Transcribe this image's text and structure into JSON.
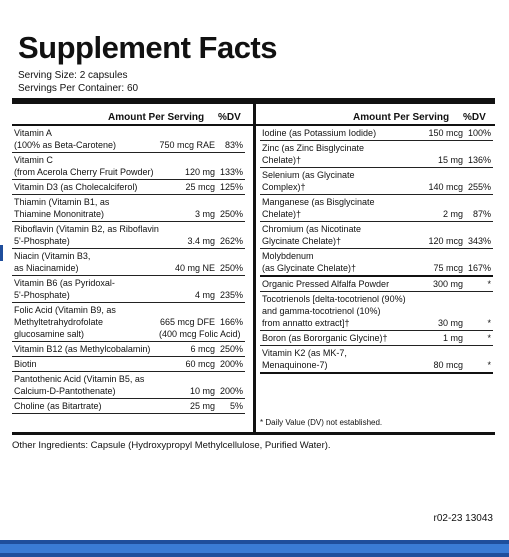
{
  "title": "Supplement Facts",
  "serving_size": "Serving Size: 2 capsules",
  "servings_per_container": "Servings Per Container: 60",
  "header": {
    "amount": "Amount Per Serving",
    "dv": "%DV"
  },
  "left_rows": [
    {
      "lines": [
        [
          "Vitamin A",
          "",
          ""
        ],
        [
          "(100% as Beta-Carotene)",
          "750 mcg RAE",
          "83%"
        ]
      ]
    },
    {
      "lines": [
        [
          "Vitamin C",
          "",
          ""
        ],
        [
          "(from Acerola Cherry Fruit Powder)",
          "120 mg",
          "133%"
        ]
      ]
    },
    {
      "lines": [
        [
          "Vitamin D3 (as Cholecalciferol)",
          "25 mcg",
          "125%"
        ]
      ]
    },
    {
      "lines": [
        [
          "Thiamin (Vitamin B1, as",
          "",
          ""
        ],
        [
          "Thiamine Mononitrate)",
          "3 mg",
          "250%"
        ]
      ]
    },
    {
      "lines": [
        [
          "Riboflavin (Vitamin B2, as Riboflavin-",
          "",
          ""
        ],
        [
          "5'-Phosphate)",
          "3.4 mg",
          "262%"
        ]
      ]
    },
    {
      "lines": [
        [
          "Niacin (Vitamin B3,",
          "",
          ""
        ],
        [
          "as Niacinamide)",
          "40 mg NE",
          "250%"
        ]
      ]
    },
    {
      "lines": [
        [
          "Vitamin B6 (as Pyridoxal-",
          "",
          ""
        ],
        [
          "5'-Phosphate)",
          "4 mg",
          "235%"
        ]
      ]
    },
    {
      "lines": [
        [
          "Folic Acid (Vitamin B9, as",
          "",
          ""
        ],
        [
          "Methyltetrahydrofolate",
          "665 mcg DFE",
          "166%"
        ],
        [
          "glucosamine salt)",
          "(400 mcg Folic Acid)",
          ""
        ]
      ]
    },
    {
      "lines": [
        [
          "Vitamin B12 (as Methylcobalamin)",
          "6 mcg",
          "250%"
        ]
      ]
    },
    {
      "lines": [
        [
          "Biotin",
          "60 mcg",
          "200%"
        ]
      ]
    },
    {
      "lines": [
        [
          "Pantothenic Acid (Vitamin B5, as",
          "",
          ""
        ],
        [
          "Calcium-D-Pantothenate)",
          "10 mg",
          "200%"
        ]
      ]
    },
    {
      "lines": [
        [
          "Choline (as Bitartrate)",
          "25 mg",
          "5%"
        ]
      ]
    }
  ],
  "right_rows": [
    {
      "lines": [
        [
          "Iodine (as Potassium Iodide)",
          "150 mcg",
          "100%"
        ]
      ]
    },
    {
      "lines": [
        [
          "Zinc (as Zinc Bisglycinate",
          "",
          ""
        ],
        [
          "Chelate)†",
          "15 mg",
          "136%"
        ]
      ]
    },
    {
      "lines": [
        [
          "Selenium (as Glycinate",
          "",
          ""
        ],
        [
          "Complex)†",
          "140 mcg",
          "255%"
        ]
      ]
    },
    {
      "lines": [
        [
          "Manganese (as Bisglycinate",
          "",
          ""
        ],
        [
          "Chelate)†",
          "2 mg",
          "87%"
        ]
      ]
    },
    {
      "lines": [
        [
          "Chromium (as Nicotinate",
          "",
          ""
        ],
        [
          "Glycinate Chelate)†",
          "120 mcg",
          "343%"
        ]
      ]
    },
    {
      "lines": [
        [
          "Molybdenum",
          "",
          ""
        ],
        [
          "(as Glycinate Chelate)†",
          "75 mcg",
          "167%"
        ]
      ],
      "thick": true
    },
    {
      "lines": [
        [
          "Organic Pressed Alfalfa Powder",
          "300 mg",
          "*"
        ]
      ]
    },
    {
      "lines": [
        [
          "Tocotrienols [delta-tocotrienol (90%)",
          "",
          ""
        ],
        [
          "and gamma-tocotrienol (10%)",
          "",
          ""
        ],
        [
          "from annatto extract]†",
          "30 mg",
          "*"
        ]
      ]
    },
    {
      "lines": [
        [
          "Boron (as Bororganic Glycine)†",
          "1 mg",
          "*"
        ]
      ]
    },
    {
      "lines": [
        [
          "Vitamin K2 (as MK-7,",
          "",
          ""
        ],
        [
          "Menaquinone-7)",
          "80 mcg",
          "*"
        ]
      ],
      "thick": true
    }
  ],
  "footnote": "* Daily Value (DV) not established.",
  "other_ingredients": "Other Ingredients: Capsule (Hydroxypropyl Methylcellulose, Purified Water).",
  "code": "r02-23 13043",
  "colors": {
    "border": "#111111",
    "bottom_band": "#1f4e9c"
  }
}
